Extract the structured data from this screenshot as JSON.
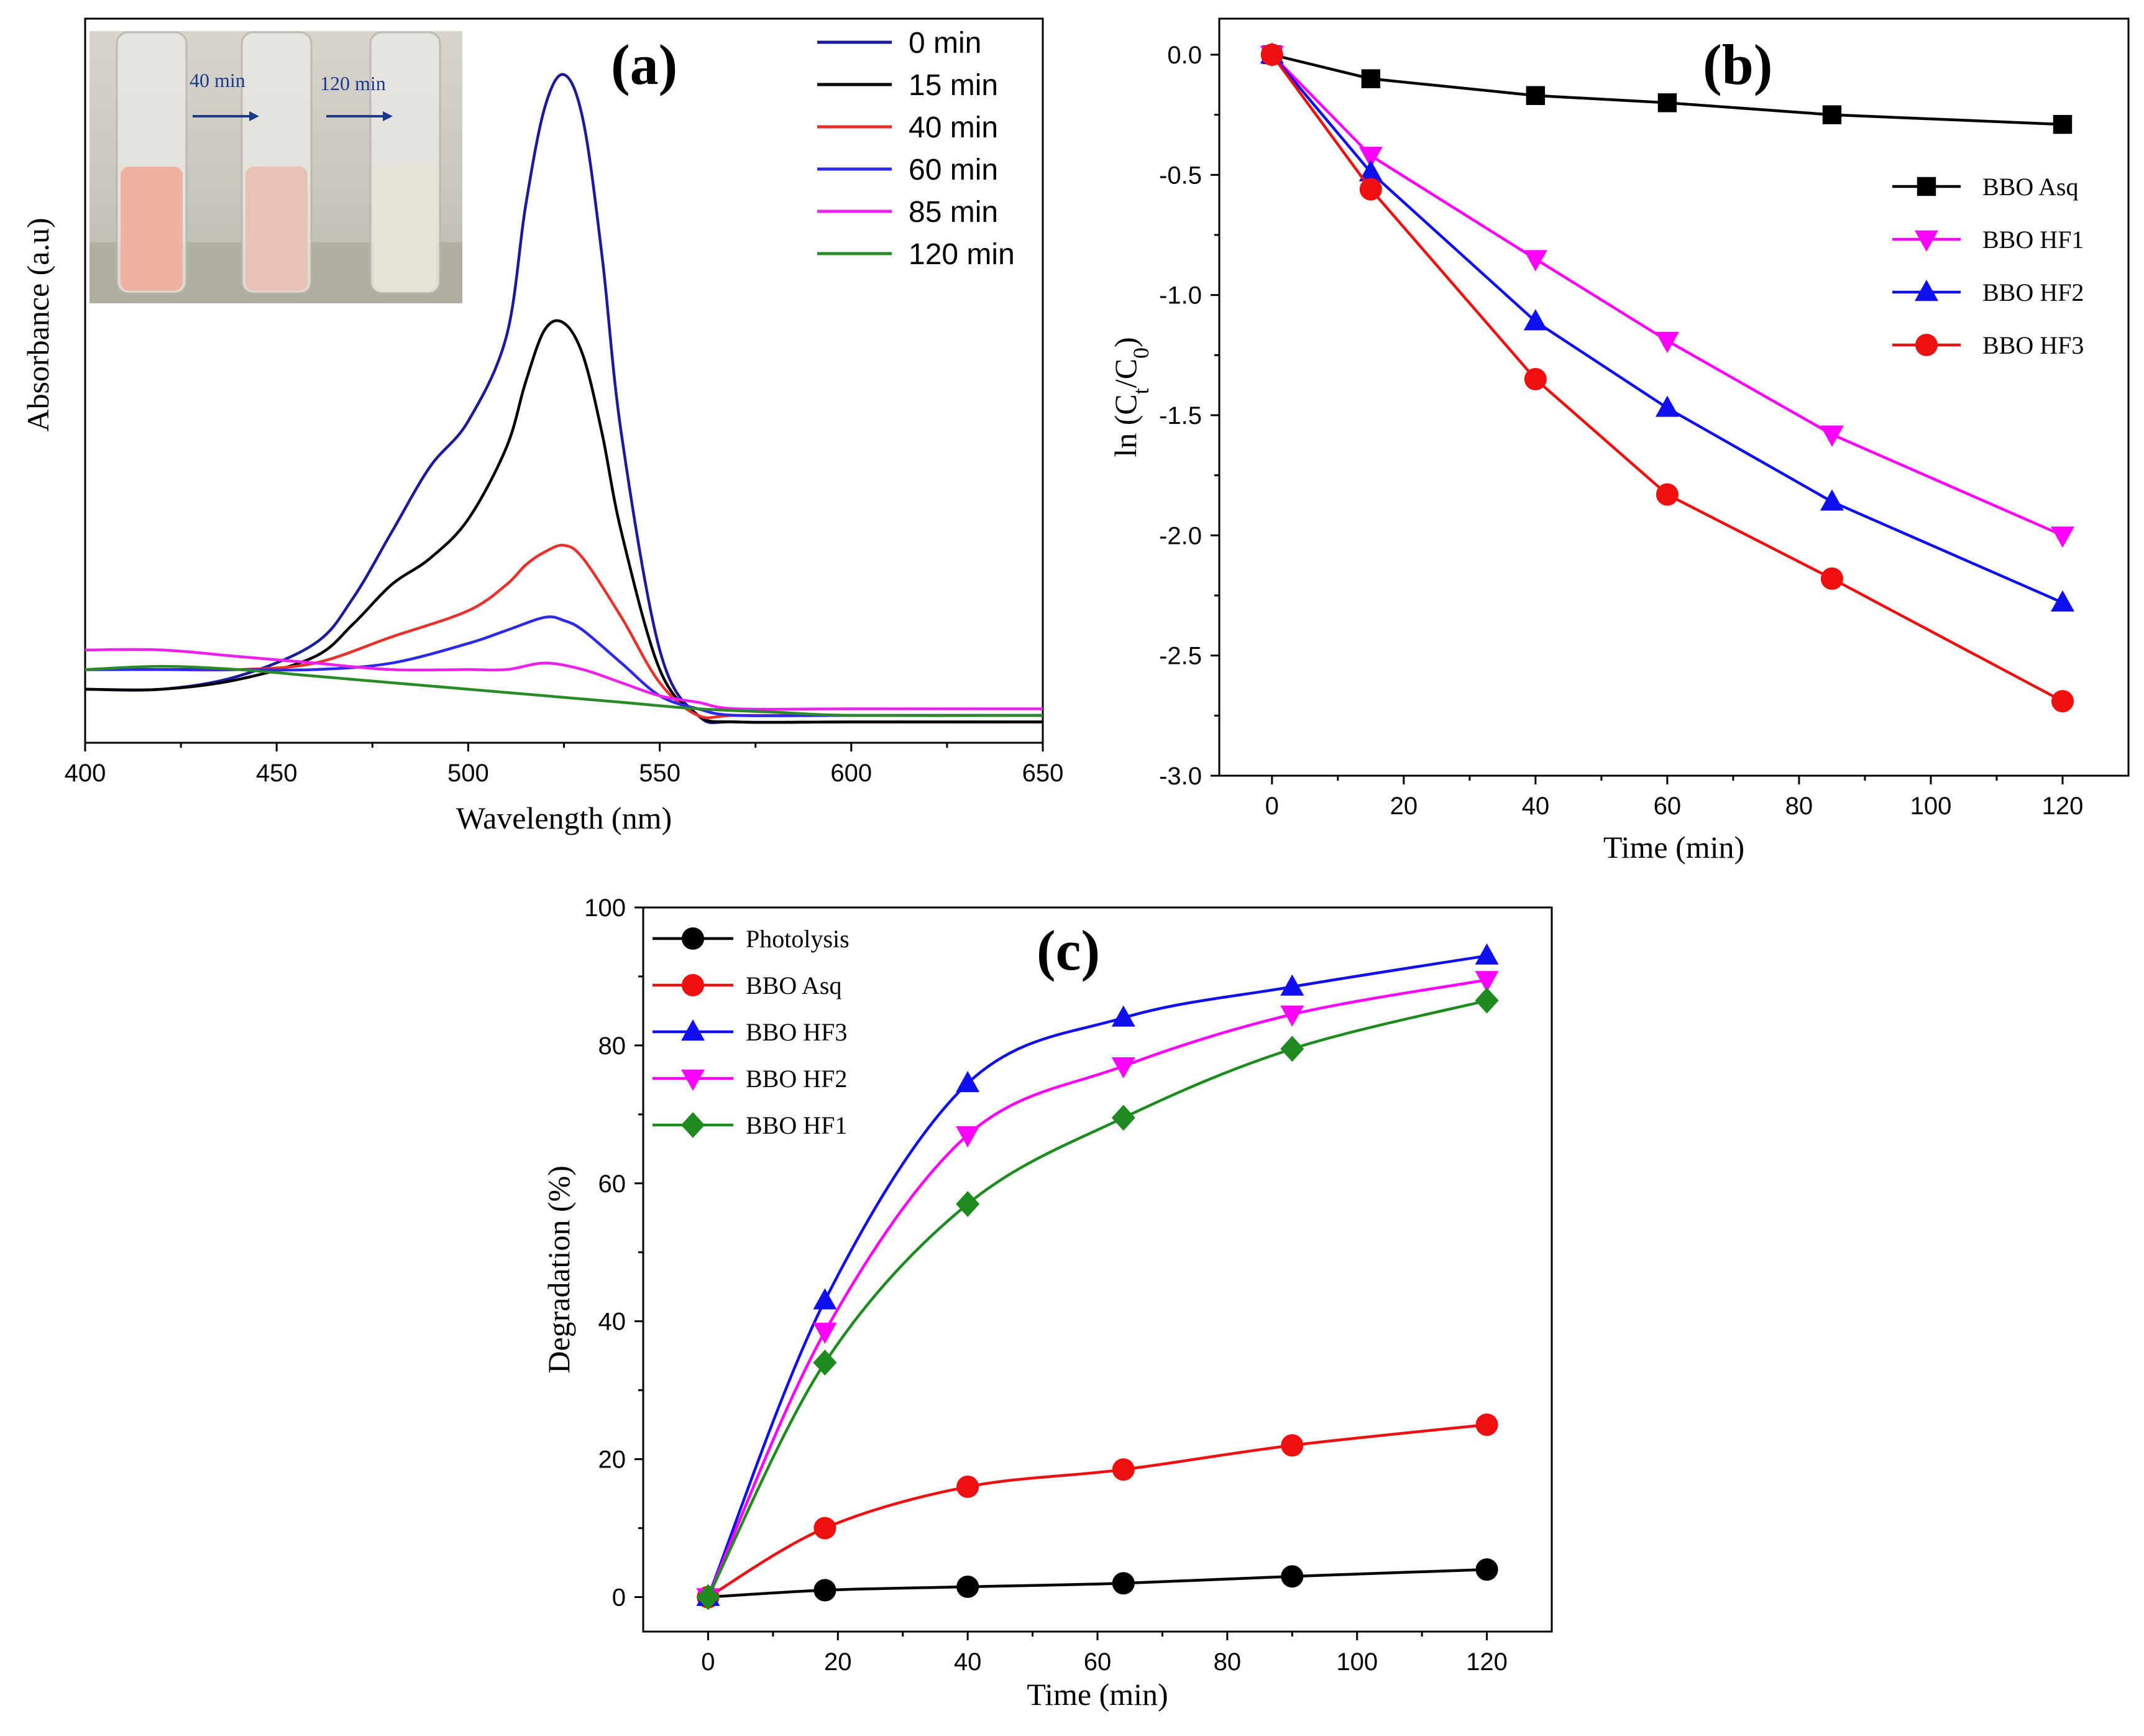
{
  "chart_data": [
    {
      "panel": "(a)",
      "type": "line",
      "xlabel": "Wavelength (nm)",
      "ylabel": "Absorbance (a.u)",
      "xlim": [
        400,
        650
      ],
      "ylim": [
        0,
        1
      ],
      "x_ticks": [
        400,
        450,
        500,
        550,
        600,
        650
      ],
      "inset": {
        "labels": [
          "40 min",
          "120 min"
        ],
        "tube_colors": [
          "#efb1a2",
          "#e9c1b6",
          "#e7e4d6"
        ],
        "arrow_color": "#1b3a8a"
      },
      "series": [
        {
          "name": "0 min",
          "color": "#1a1a9c",
          "x": [
            400,
            420,
            440,
            460,
            470,
            480,
            490,
            500,
            510,
            515,
            520,
            525,
            530,
            535,
            540,
            550,
            560,
            570,
            600,
            650
          ],
          "y": [
            0.06,
            0.06,
            0.08,
            0.13,
            0.2,
            0.3,
            0.4,
            0.47,
            0.6,
            0.8,
            0.95,
            1.0,
            0.93,
            0.72,
            0.45,
            0.12,
            0.02,
            0.01,
            0.01,
            0.01
          ]
        },
        {
          "name": "15 min",
          "color": "#000000",
          "x": [
            400,
            420,
            440,
            460,
            470,
            480,
            490,
            500,
            510,
            515,
            520,
            525,
            530,
            535,
            540,
            550,
            560,
            570,
            600,
            650
          ],
          "y": [
            0.06,
            0.06,
            0.075,
            0.11,
            0.16,
            0.22,
            0.26,
            0.32,
            0.43,
            0.53,
            0.61,
            0.62,
            0.57,
            0.45,
            0.3,
            0.09,
            0.02,
            0.01,
            0.01,
            0.01
          ]
        },
        {
          "name": "40 min",
          "color": "#e8312b",
          "x": [
            400,
            420,
            440,
            460,
            480,
            500,
            510,
            515,
            520,
            525,
            530,
            540,
            550,
            560,
            570,
            600,
            650
          ],
          "y": [
            0.09,
            0.09,
            0.09,
            0.1,
            0.14,
            0.18,
            0.22,
            0.25,
            0.27,
            0.28,
            0.26,
            0.17,
            0.07,
            0.02,
            0.02,
            0.02,
            0.02
          ]
        },
        {
          "name": "60 min",
          "color": "#2a2ae8",
          "x": [
            400,
            420,
            440,
            460,
            480,
            500,
            510,
            520,
            525,
            530,
            540,
            550,
            560,
            570,
            600,
            650
          ],
          "y": [
            0.09,
            0.09,
            0.09,
            0.09,
            0.1,
            0.13,
            0.15,
            0.17,
            0.165,
            0.15,
            0.1,
            0.05,
            0.03,
            0.02,
            0.02,
            0.02
          ]
        },
        {
          "name": "85 min",
          "color": "#ee20ee",
          "x": [
            400,
            420,
            440,
            460,
            480,
            500,
            510,
            520,
            530,
            540,
            550,
            560,
            570,
            600,
            650
          ],
          "y": [
            0.12,
            0.12,
            0.11,
            0.1,
            0.09,
            0.09,
            0.09,
            0.1,
            0.09,
            0.07,
            0.05,
            0.04,
            0.03,
            0.03,
            0.03
          ]
        },
        {
          "name": "120 min",
          "color": "#2a8a2a",
          "x": [
            400,
            420,
            440,
            460,
            480,
            500,
            520,
            540,
            560,
            580,
            600,
            650
          ],
          "y": [
            0.09,
            0.095,
            0.09,
            0.08,
            0.07,
            0.06,
            0.05,
            0.04,
            0.03,
            0.025,
            0.02,
            0.02
          ]
        }
      ]
    },
    {
      "panel": "(b)",
      "type": "line",
      "xlabel": "Time (min)",
      "ylabel": "ln (Ct/C0)",
      "ylabel_parts": {
        "prefix": "ln (C",
        "sub1": "t",
        "mid": "/C",
        "sub2": "0",
        "suffix": ")"
      },
      "xlim": [
        -8,
        130
      ],
      "ylim": [
        -3.0,
        0.15
      ],
      "x_ticks": [
        0,
        20,
        40,
        60,
        80,
        100,
        120
      ],
      "y_ticks": [
        0.0,
        -0.5,
        -1.0,
        -1.5,
        -2.0,
        -2.5,
        -3.0
      ],
      "y_tick_labels": [
        "0.0",
        "-0.5",
        "-1.0",
        "-1.5",
        "-2.0",
        "-2.5",
        "-3.0"
      ],
      "x": [
        0,
        15,
        40,
        60,
        85,
        120
      ],
      "series": [
        {
          "name": "BBO Asq",
          "color": "#000000",
          "marker": "square",
          "values": [
            0,
            -0.1,
            -0.17,
            -0.2,
            -0.25,
            -0.29
          ]
        },
        {
          "name": "BBO HF1",
          "color": "#ff00ff",
          "marker": "triangle-down",
          "values": [
            0,
            -0.42,
            -0.85,
            -1.19,
            -1.58,
            -2.0
          ]
        },
        {
          "name": "BBO HF2",
          "color": "#1010ee",
          "marker": "triangle-up",
          "values": [
            0,
            -0.49,
            -1.11,
            -1.47,
            -1.86,
            -2.28
          ]
        },
        {
          "name": "BBO HF3",
          "color": "#ee1010",
          "marker": "circle",
          "values": [
            0,
            -0.56,
            -1.35,
            -1.83,
            -2.18,
            -2.69
          ]
        }
      ]
    },
    {
      "panel": "(c)",
      "type": "line",
      "xlabel": "Time (min)",
      "ylabel": "Degradation (%)",
      "xlim": [
        -10,
        130
      ],
      "ylim": [
        -5,
        100
      ],
      "x_ticks": [
        0,
        20,
        40,
        60,
        80,
        100,
        120
      ],
      "y_ticks": [
        0,
        20,
        40,
        60,
        80,
        100
      ],
      "x": [
        0,
        18,
        40,
        64,
        90,
        120
      ],
      "series": [
        {
          "name": "Photolysis",
          "color": "#000000",
          "marker": "circle",
          "values": [
            0,
            1,
            1.5,
            2,
            3,
            4
          ]
        },
        {
          "name": "BBO Asq",
          "color": "#ee1010",
          "marker": "circle",
          "values": [
            0,
            10,
            16,
            18.5,
            22,
            25
          ]
        },
        {
          "name": "BBO HF3",
          "color": "#1010ee",
          "marker": "triangle-up",
          "values": [
            0,
            43,
            74.5,
            84,
            88.5,
            93
          ]
        },
        {
          "name": "BBO HF2",
          "color": "#ff00ff",
          "marker": "triangle-down",
          "values": [
            0,
            38.5,
            67,
            77,
            84.5,
            89.5
          ]
        },
        {
          "name": "BBO HF1",
          "color": "#1f8a1f",
          "marker": "diamond",
          "values": [
            0,
            34,
            57,
            69.5,
            79.5,
            86.5
          ]
        }
      ]
    }
  ]
}
